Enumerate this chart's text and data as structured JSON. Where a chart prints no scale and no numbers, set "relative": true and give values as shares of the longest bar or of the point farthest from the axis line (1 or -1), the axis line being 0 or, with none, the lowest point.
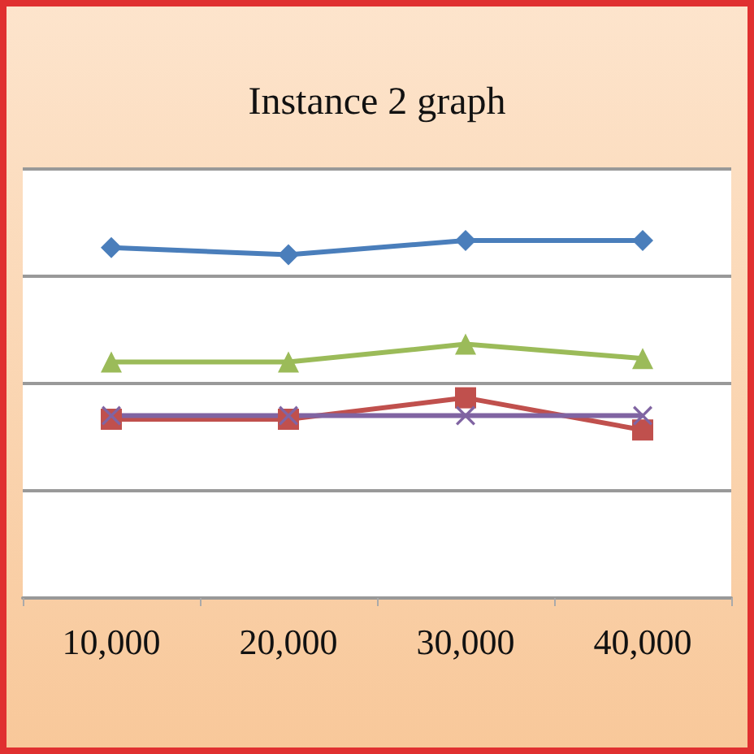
{
  "chart_data": {
    "type": "line",
    "title": "Instance 2 graph",
    "categories": [
      "10,000",
      "20,000",
      "30,000",
      "40,000"
    ],
    "relative": true,
    "grid": "y",
    "series": [
      {
        "color": "#4a7ebb",
        "marker": "diamond",
        "values": [
          0.98,
          0.96,
          1,
          1
        ]
      },
      {
        "color": "#9bbb59",
        "marker": "triangle",
        "values": [
          0.66,
          0.66,
          0.71,
          0.67
        ]
      },
      {
        "color": "#c0504d",
        "marker": "square",
        "values": [
          0.5,
          0.5,
          0.56,
          0.47
        ]
      },
      {
        "color": "#8064a2",
        "marker": "cross",
        "values": [
          0.51,
          0.51,
          0.51,
          0.51
        ]
      }
    ]
  }
}
